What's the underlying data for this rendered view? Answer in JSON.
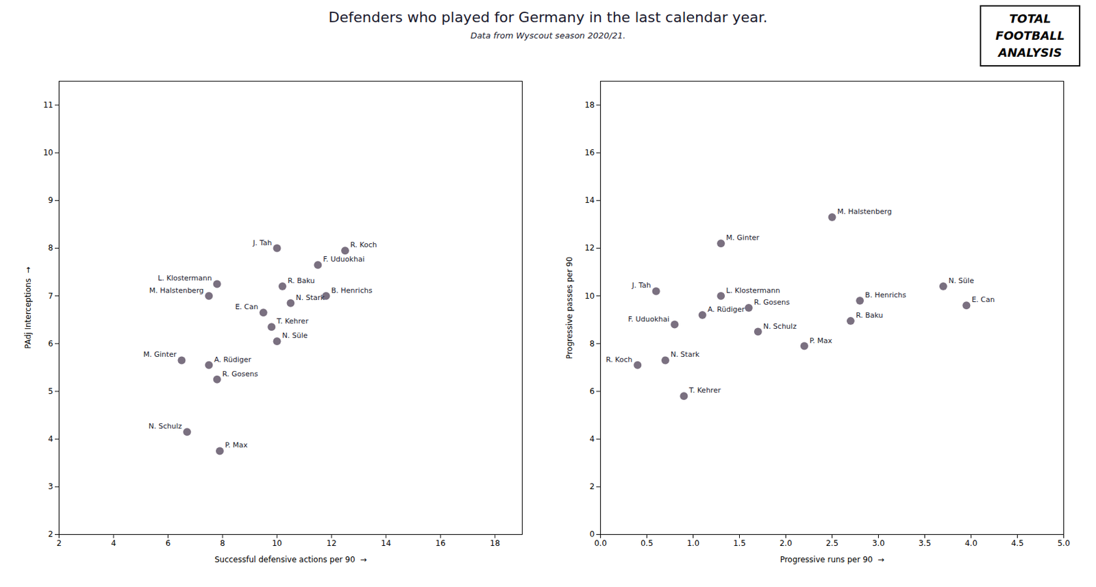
{
  "chart_data": [
    {
      "type": "scatter",
      "title": "Defenders who played for Germany in the last calendar year.",
      "subtitle": "Data from Wyscout season 2020/21.",
      "annotations": [
        "TOTAL",
        "FOOTBALL",
        "ANALYSIS"
      ],
      "xlabel": "Successful defensive actions per 90  →",
      "ylabel": "PAdj Interceptions  →",
      "xlim": [
        2,
        19
      ],
      "ylim": [
        2,
        11.5
      ],
      "xticks": [
        2,
        4,
        6,
        8,
        10,
        12,
        14,
        16,
        18
      ],
      "yticks": [
        2,
        3,
        4,
        5,
        6,
        7,
        8,
        9,
        10,
        11
      ],
      "grid": false,
      "color": "#7a7080",
      "labels": [
        "J. Tah",
        "R. Koch",
        "F. Uduokhai",
        "L. Klostermann",
        "R. Baku",
        "M. Halstenberg",
        "B. Henrichs",
        "E. Can",
        "N. Stark",
        "T. Kehrer",
        "N. Süle",
        "M. Ginter",
        "A. Rüdiger",
        "R. Gosens",
        "N. Schulz",
        "P. Max"
      ],
      "x": [
        10.0,
        12.5,
        11.5,
        7.8,
        10.2,
        7.5,
        11.8,
        9.5,
        10.5,
        9.8,
        10.0,
        6.5,
        7.5,
        7.8,
        6.7,
        7.9
      ],
      "values": [
        8.0,
        7.95,
        7.65,
        7.25,
        7.2,
        7.0,
        7.0,
        6.65,
        6.85,
        6.35,
        6.05,
        5.65,
        5.55,
        5.25,
        4.15,
        3.75
      ]
    },
    {
      "type": "scatter",
      "xlabel": "Progressive runs per 90  →",
      "ylabel": "Progressive passes per 90",
      "xlim": [
        0.0,
        5.0
      ],
      "ylim": [
        0,
        19
      ],
      "xticks": [
        {
          "value": 0,
          "label": "0.0"
        },
        0.5,
        {
          "value": 1,
          "label": "1.0"
        },
        1.5,
        {
          "value": 2,
          "label": "2.0"
        },
        2.5,
        {
          "value": 3,
          "label": "3.0"
        },
        3.5,
        {
          "value": 4,
          "label": "4.0"
        },
        4.5,
        {
          "value": 5,
          "label": "5.0"
        }
      ],
      "yticks": [
        0,
        2,
        4,
        6,
        8,
        10,
        12,
        14,
        16,
        18
      ],
      "grid": false,
      "color": "#7a7080",
      "labels": [
        "M. Halstenberg",
        "M. Ginter",
        "N. Süle",
        "J. Tah",
        "L. Klostermann",
        "R. Gosens",
        "B. Henrichs",
        "E. Can",
        "A. Rüdiger",
        "F. Uduokhai",
        "N. Schulz",
        "R. Baku",
        "P. Max",
        "N. Stark",
        "R. Koch",
        "T. Kehrer"
      ],
      "x": [
        2.5,
        1.3,
        3.7,
        0.6,
        1.3,
        1.6,
        2.8,
        3.95,
        1.1,
        0.8,
        1.7,
        2.7,
        2.2,
        0.7,
        0.4,
        0.9
      ],
      "values": [
        13.3,
        12.2,
        10.4,
        10.2,
        10.0,
        9.5,
        9.8,
        9.6,
        9.2,
        8.8,
        8.5,
        8.95,
        7.9,
        7.3,
        7.1,
        5.8
      ]
    }
  ]
}
